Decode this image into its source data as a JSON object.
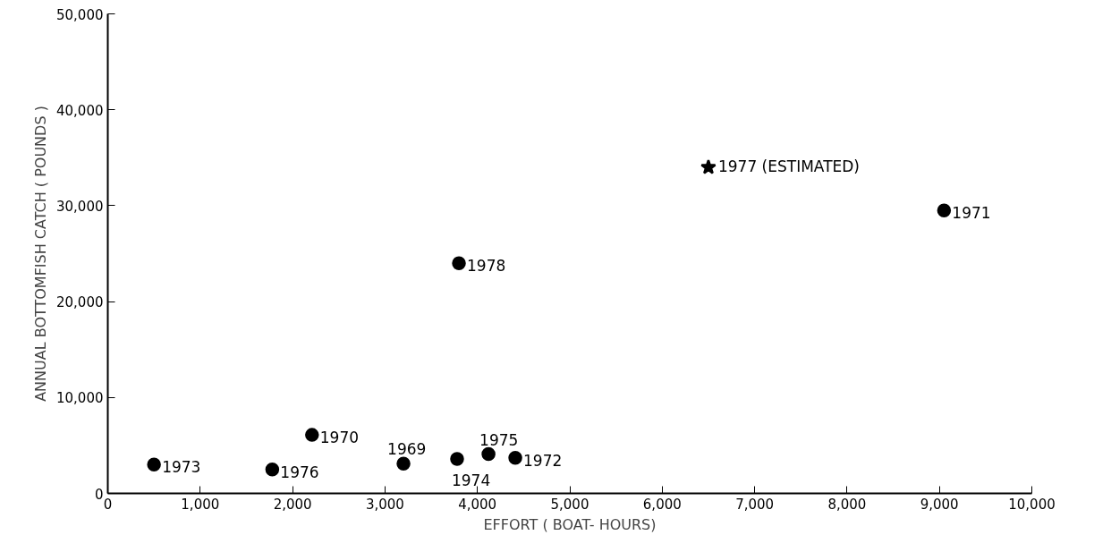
{
  "chart_data": {
    "type": "scatter",
    "xlabel": "EFFORT ( BOAT- HOURS)",
    "ylabel": "ANNUAL BOTTOMFISH CATCH ( POUNDS )",
    "xlim": [
      0,
      10000
    ],
    "ylim": [
      0,
      50000
    ],
    "xticks": [
      0,
      {
        "value": 1000,
        "label": "1,000"
      },
      {
        "value": 2000,
        "label": "2,000"
      },
      {
        "value": 3000,
        "label": "3,000"
      },
      {
        "value": 4000,
        "label": "4,000"
      },
      {
        "value": 5000,
        "label": "5,000"
      },
      {
        "value": 6000,
        "label": "6,000"
      },
      {
        "value": 7000,
        "label": "7,000"
      },
      {
        "value": 8000,
        "label": "8,000"
      },
      {
        "value": 9000,
        "label": "9,000"
      },
      {
        "value": 10000,
        "label": "10,000"
      }
    ],
    "yticks": [
      0,
      {
        "value": 10000,
        "label": "10,000"
      },
      {
        "value": 20000,
        "label": "20,000"
      },
      {
        "value": 30000,
        "label": "30,000"
      },
      {
        "value": 40000,
        "label": "40,000"
      },
      {
        "value": 50000,
        "label": "50,000"
      }
    ],
    "grid": false,
    "series": [
      {
        "color": "#000000",
        "marker": "circle",
        "x": [
          500,
          1780,
          2210,
          3200,
          3780,
          4120,
          4410,
          3800,
          9050
        ],
        "values": [
          3000,
          2500,
          6100,
          3100,
          3600,
          4100,
          3700,
          24000,
          29500
        ]
      },
      {
        "color": "#000000",
        "marker": "star",
        "x": [
          6500
        ],
        "values": [
          34000
        ]
      }
    ],
    "annotations": [
      {
        "text": "1973",
        "x": 500,
        "y": 3000
      },
      {
        "text": "1976",
        "x": 1780,
        "y": 2500
      },
      {
        "text": "1970",
        "x": 2210,
        "y": 6100
      },
      {
        "text": "1969",
        "x": 3200,
        "y": 3100
      },
      {
        "text": "1974",
        "x": 3780,
        "y": 3600
      },
      {
        "text": "1975",
        "x": 4120,
        "y": 4100
      },
      {
        "text": "1972",
        "x": 4410,
        "y": 3700
      },
      {
        "text": "1978",
        "x": 3800,
        "y": 24000
      },
      {
        "text": "1971",
        "x": 9050,
        "y": 29500
      },
      {
        "text": "1977 (ESTIMATED)",
        "x": 6500,
        "y": 34000
      }
    ]
  }
}
